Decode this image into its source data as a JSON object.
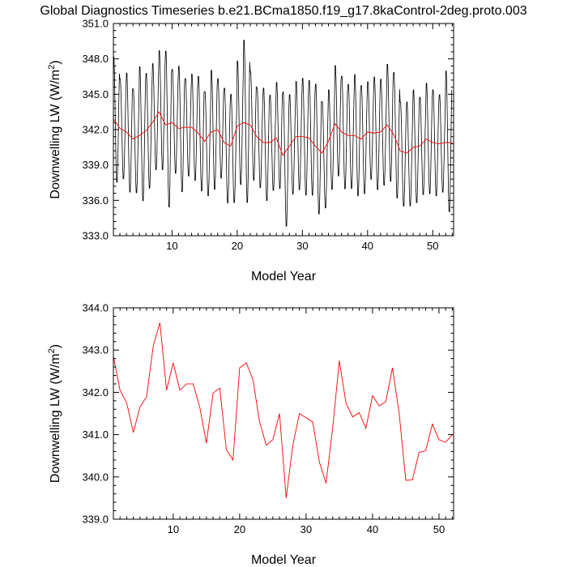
{
  "title": "Global Diagnostics Timeseries b.e21.BCma1850.f19_g17.8kaControl-2deg.proto.003",
  "colors": {
    "monthly": "#000000",
    "annual": "#ff0000",
    "axis": "#000000"
  },
  "chart_data": [
    {
      "type": "line",
      "title": "Global Diagnostics Timeseries b.e21.BCma1850.f19_g17.8kaControl-2deg.proto.003",
      "xlabel": "Model Year",
      "ylabel_main": "Downwelling LW (W/m",
      "ylabel_sup": "2",
      "ylabel_close": ")",
      "xlim": [
        1,
        53.2
      ],
      "ylim": [
        333.0,
        351.0
      ],
      "xticks": [
        10,
        20,
        30,
        40,
        50
      ],
      "yticks": [
        "333.0",
        "336.0",
        "339.0",
        "342.0",
        "345.0",
        "348.0",
        "351.0"
      ],
      "series": [
        {
          "color": "#000000",
          "x_start": 1.0,
          "x_step": 0.08333,
          "annual_mean": [
            342.85,
            342.05,
            341.75,
            341.05,
            341.65,
            341.9,
            343.1,
            343.65,
            342.05,
            342.7,
            342.05,
            342.2,
            342.2,
            341.65,
            340.8,
            341.98,
            342.1,
            340.65,
            340.4,
            342.58,
            342.7,
            342.3,
            341.3,
            340.75,
            340.88,
            341.5,
            339.5,
            340.75,
            341.5,
            341.4,
            341.3,
            340.35,
            339.85,
            341.15,
            342.75,
            341.75,
            341.42,
            341.52,
            341.15,
            341.92,
            341.68,
            341.78,
            342.58,
            341.52,
            339.92,
            339.93,
            340.58,
            340.62,
            341.25,
            340.88,
            340.82,
            341.0
          ],
          "amplitude": [
            5.8,
            4.6,
            5.5,
            4.8,
            6.2,
            5.3,
            4.9,
            5.5,
            7.2,
            4.8,
            5.8,
            4.5,
            4.9,
            5.3,
            4.8,
            5.5,
            4.6,
            5.3,
            5.0,
            5.7,
            7.5,
            5.0,
            4.6,
            5.2,
            4.4,
            4.9,
            6.2,
            4.6,
            5.0,
            5.4,
            5.3,
            6.0,
            4.9,
            4.6,
            5.1,
            5.2,
            4.8,
            5.6,
            5.0,
            4.5,
            5.2,
            4.9,
            5.4,
            5.8,
            4.8,
            4.8,
            5.2,
            4.5,
            5.1,
            4.9,
            4.5,
            6.5
          ]
        },
        {
          "color": "#ff0000",
          "x": [
            1.0,
            2.0,
            3.0,
            4.0,
            5.0,
            6.0,
            7.0,
            8.0,
            9.0,
            10.0,
            11.0,
            12.0,
            13.0,
            14.0,
            15.0,
            16.0,
            17.0,
            18.0,
            19.0,
            20.0,
            21.0,
            22.0,
            23.0,
            24.0,
            25.0,
            26.0,
            27.0,
            28.0,
            29.0,
            30.0,
            31.0,
            32.0,
            33.0,
            34.0,
            35.0,
            36.0,
            37.0,
            38.0,
            39.0,
            40.0,
            41.0,
            42.0,
            43.0,
            44.0,
            45.0,
            46.0,
            47.0,
            48.0,
            49.0,
            50.0,
            51.0,
            52.0,
            53.0
          ],
          "y": [
            342.9,
            342.1,
            341.8,
            341.2,
            341.5,
            341.9,
            342.6,
            343.5,
            342.4,
            342.6,
            342.1,
            342.2,
            342.2,
            341.7,
            341.0,
            341.8,
            342.0,
            340.9,
            340.6,
            342.3,
            342.6,
            342.4,
            341.4,
            340.9,
            340.9,
            341.3,
            339.8,
            340.6,
            341.4,
            341.4,
            341.3,
            340.6,
            340.0,
            341.0,
            342.5,
            341.8,
            341.5,
            341.5,
            341.2,
            341.8,
            341.7,
            341.8,
            342.4,
            341.6,
            340.2,
            340.0,
            340.5,
            340.6,
            341.2,
            340.9,
            340.8,
            340.9,
            340.9
          ]
        }
      ]
    },
    {
      "type": "line",
      "xlabel": "Model Year",
      "ylabel_main": "Downwelling LW (W/m",
      "ylabel_sup": "2",
      "ylabel_close": ")",
      "xlim": [
        1,
        52.2
      ],
      "ylim": [
        339.0,
        344.0
      ],
      "xticks": [
        10,
        20,
        30,
        40,
        50
      ],
      "yticks": [
        "339.0",
        "340.0",
        "341.0",
        "342.0",
        "343.0",
        "344.0"
      ],
      "series": [
        {
          "color": "#ff0000",
          "x": [
            1.0,
            2.0,
            3.0,
            4.0,
            5.0,
            6.0,
            7.0,
            8.0,
            9.0,
            10.0,
            11.0,
            12.0,
            13.0,
            14.0,
            15.0,
            16.0,
            17.0,
            18.0,
            19.0,
            20.0,
            21.0,
            22.0,
            23.0,
            24.0,
            25.0,
            26.0,
            27.0,
            28.0,
            29.0,
            30.0,
            31.0,
            32.0,
            33.0,
            34.0,
            35.0,
            36.0,
            37.0,
            38.0,
            39.0,
            40.0,
            41.0,
            42.0,
            43.0,
            44.0,
            45.0,
            46.0,
            47.0,
            48.0,
            49.0,
            50.0,
            51.0,
            52.0
          ],
          "y": [
            342.85,
            342.05,
            341.75,
            341.05,
            341.65,
            341.9,
            343.1,
            343.65,
            342.05,
            342.7,
            342.05,
            342.2,
            342.2,
            341.65,
            340.8,
            341.98,
            342.1,
            340.65,
            340.4,
            342.58,
            342.7,
            342.3,
            341.3,
            340.75,
            340.88,
            341.5,
            339.5,
            340.75,
            341.5,
            341.4,
            341.3,
            340.35,
            339.85,
            341.15,
            342.75,
            341.75,
            341.42,
            341.52,
            341.15,
            341.92,
            341.68,
            341.78,
            342.58,
            341.52,
            339.92,
            339.93,
            340.58,
            340.62,
            341.25,
            340.88,
            340.82,
            341.0
          ]
        }
      ]
    }
  ]
}
